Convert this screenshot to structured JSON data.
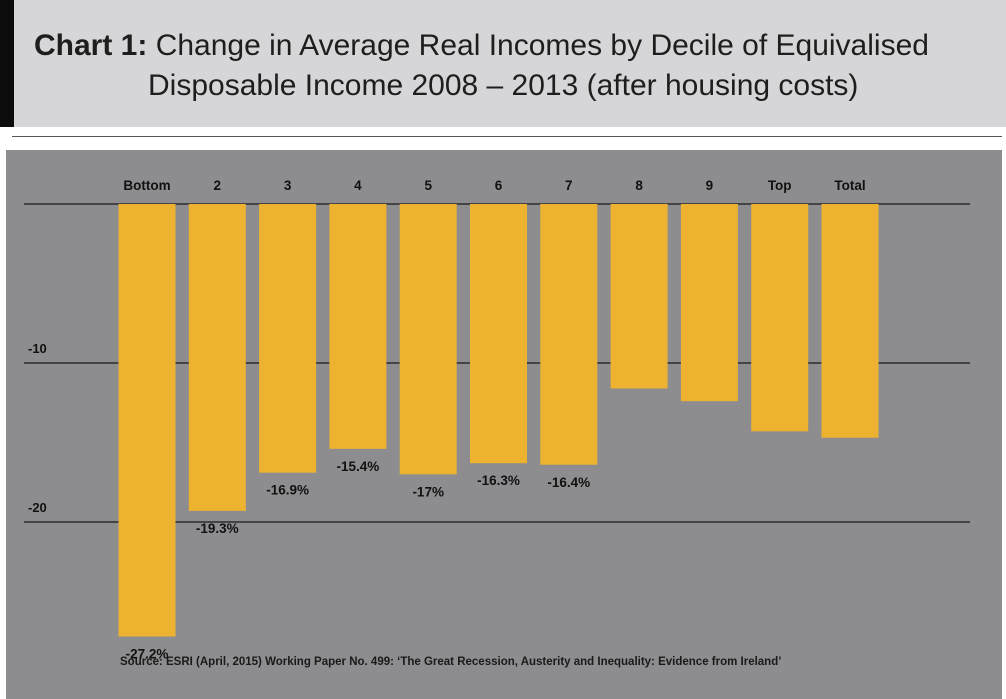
{
  "header": {
    "title_label": "Chart 1:",
    "title_text": "Change in Average Real Incomes by Decile of Equivalised",
    "subtitle_text": "Disposable Income 2008 – 2013 (after housing costs)"
  },
  "chart_data": {
    "type": "bar",
    "categories": [
      "Bottom",
      "2",
      "3",
      "4",
      "5",
      "6",
      "7",
      "8",
      "9",
      "Top",
      "Total"
    ],
    "values": [
      -27.2,
      -19.3,
      -16.9,
      -15.4,
      -17.0,
      -16.3,
      -16.4,
      -11.6,
      -12.4,
      -14.3,
      -14.7
    ],
    "data_labels": [
      "-27.2%",
      "-19.3%",
      "-16.9%",
      "-15.4%",
      "-17%",
      "-16.3%",
      "-16.4%",
      "",
      "",
      "",
      ""
    ],
    "ylim": [
      -28,
      0
    ],
    "yticks": [
      0,
      -10,
      -20
    ],
    "ytick_labels": [
      "",
      "-10",
      "-20"
    ],
    "category_axis_position": "top",
    "grid": true,
    "bar_color": "#eeb231",
    "background_color": "#8d8d90",
    "xlabel": "",
    "ylabel": ""
  },
  "source": {
    "text": "Source: ESRI (April, 2015) Working Paper No. 499: ‘The Great Recession, Austerity and Inequality: Evidence from Ireland’"
  }
}
